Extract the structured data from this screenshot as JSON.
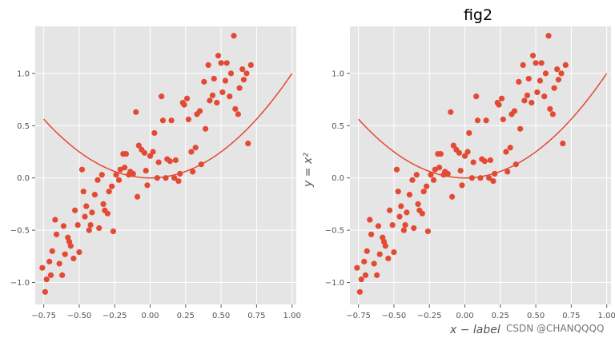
{
  "chart_data": [
    {
      "type": "scatter",
      "title": "",
      "xlabel": "",
      "ylabel": "",
      "xlim": [
        -0.81,
        1.03
      ],
      "ylim": [
        -1.21,
        1.45
      ],
      "xticks": [
        -0.75,
        -0.5,
        -0.25,
        0.0,
        0.25,
        0.5,
        0.75,
        1.0
      ],
      "xtick_labels": [
        "−0.75",
        "−0.50",
        "−0.25",
        "0.00",
        "0.25",
        "0.50",
        "0.75",
        "1.00"
      ],
      "yticks": [
        -1.0,
        -0.5,
        0.0,
        0.5,
        1.0
      ],
      "ytick_labels": [
        "−1.0",
        "−0.5",
        "0.0",
        "0.5",
        "1.0"
      ],
      "grid": true,
      "series": [
        {
          "kind": "scatter",
          "color": "#E24A33"
        },
        {
          "kind": "line",
          "color": "#E24A33",
          "function": "y = x^2"
        }
      ]
    },
    {
      "type": "scatter",
      "title": "fig2",
      "xlabel": "x − label",
      "ylabel": "y = x²",
      "xlim": [
        -0.81,
        1.03
      ],
      "ylim": [
        -1.21,
        1.45
      ],
      "xticks": [
        -0.75,
        -0.5,
        -0.25,
        0.0,
        0.25,
        0.5,
        0.75,
        1.0
      ],
      "xtick_labels": [
        "−0.75",
        "−0.50",
        "−0.25",
        "0.00",
        "0.25",
        "0.50",
        "0.75",
        "1.00"
      ],
      "yticks": [
        -1.0,
        -0.5,
        0.0,
        0.5,
        1.0
      ],
      "ytick_labels": [
        "−1.0",
        "−0.5",
        "0.0",
        "0.5",
        "1.0"
      ],
      "grid": true,
      "series": [
        {
          "kind": "scatter",
          "color": "#E24A33"
        },
        {
          "kind": "line",
          "color": "#E24A33",
          "function": "y = x^2"
        }
      ]
    }
  ],
  "points": [
    [
      -0.76,
      -0.86
    ],
    [
      -0.74,
      -1.09
    ],
    [
      -0.73,
      -0.97
    ],
    [
      -0.71,
      -0.8
    ],
    [
      -0.7,
      -0.93
    ],
    [
      -0.69,
      -0.7
    ],
    [
      -0.67,
      -0.4
    ],
    [
      -0.66,
      -0.54
    ],
    [
      -0.64,
      -0.82
    ],
    [
      -0.62,
      -0.93
    ],
    [
      -0.61,
      -0.46
    ],
    [
      -0.6,
      -0.73
    ],
    [
      -0.58,
      -0.57
    ],
    [
      -0.57,
      -0.61
    ],
    [
      -0.56,
      -0.65
    ],
    [
      -0.54,
      -0.77
    ],
    [
      -0.53,
      -0.31
    ],
    [
      -0.51,
      -0.45
    ],
    [
      -0.5,
      -0.71
    ],
    [
      -0.48,
      0.08
    ],
    [
      -0.47,
      -0.13
    ],
    [
      -0.46,
      -0.37
    ],
    [
      -0.45,
      -0.27
    ],
    [
      -0.43,
      -0.5
    ],
    [
      -0.42,
      -0.45
    ],
    [
      -0.41,
      -0.33
    ],
    [
      -0.39,
      -0.16
    ],
    [
      -0.37,
      -0.02
    ],
    [
      -0.36,
      -0.48
    ],
    [
      -0.34,
      0.03
    ],
    [
      -0.33,
      -0.25
    ],
    [
      -0.32,
      -0.31
    ],
    [
      -0.3,
      -0.34
    ],
    [
      -0.29,
      -0.13
    ],
    [
      -0.27,
      -0.08
    ],
    [
      -0.26,
      -0.51
    ],
    [
      -0.24,
      0.03
    ],
    [
      -0.22,
      -0.02
    ],
    [
      -0.21,
      0.08
    ],
    [
      -0.19,
      0.23
    ],
    [
      -0.18,
      0.1
    ],
    [
      -0.17,
      0.23
    ],
    [
      -0.15,
      0.03
    ],
    [
      -0.14,
      0.06
    ],
    [
      -0.12,
      0.04
    ],
    [
      -0.1,
      0.63
    ],
    [
      -0.09,
      -0.18
    ],
    [
      -0.08,
      0.31
    ],
    [
      -0.06,
      0.27
    ],
    [
      -0.04,
      0.24
    ],
    [
      -0.03,
      0.07
    ],
    [
      -0.02,
      -0.07
    ],
    [
      0.0,
      0.21
    ],
    [
      0.02,
      0.25
    ],
    [
      0.03,
      0.43
    ],
    [
      0.05,
      0.0
    ],
    [
      0.06,
      0.15
    ],
    [
      0.08,
      0.78
    ],
    [
      0.09,
      0.55
    ],
    [
      0.11,
      0.0
    ],
    [
      0.12,
      0.18
    ],
    [
      0.14,
      0.16
    ],
    [
      0.15,
      0.55
    ],
    [
      0.17,
      0.0
    ],
    [
      0.18,
      0.17
    ],
    [
      0.2,
      -0.03
    ],
    [
      0.21,
      0.04
    ],
    [
      0.23,
      0.72
    ],
    [
      0.24,
      0.7
    ],
    [
      0.26,
      0.76
    ],
    [
      0.27,
      0.56
    ],
    [
      0.29,
      0.25
    ],
    [
      0.3,
      0.06
    ],
    [
      0.32,
      0.29
    ],
    [
      0.33,
      0.61
    ],
    [
      0.35,
      0.64
    ],
    [
      0.36,
      0.13
    ],
    [
      0.38,
      0.92
    ],
    [
      0.39,
      0.47
    ],
    [
      0.41,
      1.08
    ],
    [
      0.42,
      0.74
    ],
    [
      0.44,
      0.79
    ],
    [
      0.45,
      0.95
    ],
    [
      0.47,
      0.72
    ],
    [
      0.48,
      1.17
    ],
    [
      0.5,
      1.1
    ],
    [
      0.51,
      0.82
    ],
    [
      0.53,
      0.93
    ],
    [
      0.54,
      1.1
    ],
    [
      0.56,
      0.78
    ],
    [
      0.57,
      1.0
    ],
    [
      0.59,
      1.36
    ],
    [
      0.6,
      0.66
    ],
    [
      0.62,
      0.61
    ],
    [
      0.63,
      0.86
    ],
    [
      0.65,
      1.04
    ],
    [
      0.66,
      0.94
    ],
    [
      0.68,
      1.0
    ],
    [
      0.69,
      0.33
    ],
    [
      0.71,
      1.08
    ]
  ],
  "watermark": "CSDN @CHANQQQQ"
}
